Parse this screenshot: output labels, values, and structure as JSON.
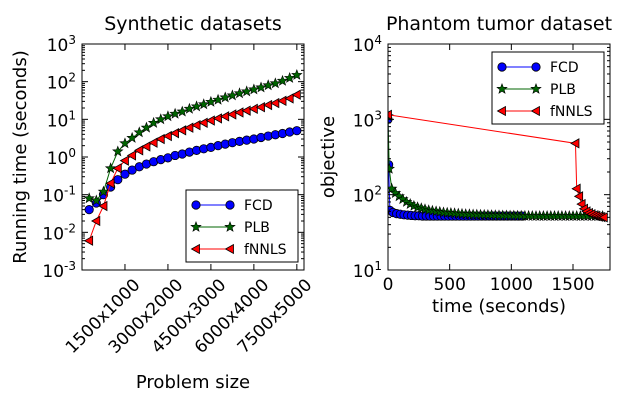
{
  "chart_data": [
    {
      "type": "line",
      "title": "Synthetic datasets",
      "xlabel": "Problem size",
      "ylabel": "Running time (seconds)",
      "yscale": "log",
      "ylim": [
        0.001,
        1000
      ],
      "y_tick_labels": [
        "10-3",
        "10-2",
        "10-1",
        "100",
        "101",
        "102",
        "103"
      ],
      "x_tick_labels": [
        "1500x1000",
        "3000x2000",
        "4500x3000",
        "6000x4000",
        "7500x5000"
      ],
      "x_ticks": [
        6,
        12,
        18,
        24,
        30
      ],
      "xlim": [
        0,
        31
      ],
      "legend_position": "lower-right",
      "x": [
        1,
        2,
        3,
        4,
        5,
        6,
        7,
        8,
        9,
        10,
        11,
        12,
        13,
        14,
        15,
        16,
        17,
        18,
        19,
        20,
        21,
        22,
        23,
        24,
        25,
        26,
        27,
        28,
        29,
        30
      ],
      "series": [
        {
          "name": "FCD",
          "color": "#0000ff",
          "marker": "circle",
          "values": [
            0.04,
            0.06,
            0.1,
            0.16,
            0.25,
            0.35,
            0.45,
            0.55,
            0.65,
            0.75,
            0.85,
            0.95,
            1.1,
            1.2,
            1.35,
            1.5,
            1.65,
            1.8,
            2.0,
            2.2,
            2.4,
            2.6,
            2.8,
            3.0,
            3.3,
            3.6,
            3.9,
            4.2,
            4.6,
            5.0
          ]
        },
        {
          "name": "PLB",
          "color": "#006400",
          "marker": "star",
          "values": [
            0.08,
            0.07,
            0.12,
            0.5,
            1.4,
            2.3,
            3.2,
            4.5,
            6.0,
            8.0,
            10,
            12,
            14,
            16,
            19,
            22,
            25,
            29,
            33,
            38,
            43,
            49,
            55,
            62,
            70,
            80,
            90,
            105,
            125,
            150
          ]
        },
        {
          "name": "fNNLS",
          "color": "#ff0000",
          "marker": "triangle-left",
          "values": [
            0.006,
            0.02,
            0.05,
            0.2,
            0.5,
            0.8,
            1.1,
            1.5,
            1.9,
            2.4,
            3.0,
            3.6,
            4.3,
            5.1,
            6.0,
            7.0,
            8.1,
            9.3,
            10.6,
            12,
            13.5,
            15.2,
            17,
            19,
            21,
            24,
            27,
            31,
            36,
            45
          ]
        }
      ]
    },
    {
      "type": "line",
      "title": "Phantom tumor dataset",
      "xlabel": "time (seconds)",
      "ylabel": "objective",
      "yscale": "log",
      "ylim": [
        10,
        10000
      ],
      "xlim": [
        0,
        1800
      ],
      "y_tick_labels": [
        "101",
        "102",
        "103",
        "104"
      ],
      "x_tick_labels": [
        "0",
        "500",
        "1000",
        "1500"
      ],
      "x_ticks": [
        0,
        500,
        1000,
        1500
      ],
      "legend_position": "top-right",
      "series": [
        {
          "name": "FCD",
          "color": "#0000ff",
          "marker": "circle",
          "points": [
            [
              0,
              1000
            ],
            [
              5,
              250
            ],
            [
              15,
              62
            ],
            [
              40,
              58
            ],
            [
              70,
              56
            ],
            [
              100,
              55
            ],
            [
              130,
              54
            ],
            [
              160,
              53.5
            ],
            [
              190,
              53
            ],
            [
              220,
              52.5
            ],
            [
              250,
              52.5
            ],
            [
              280,
              52
            ],
            [
              310,
              52
            ],
            [
              340,
              52
            ],
            [
              370,
              52
            ],
            [
              400,
              52
            ],
            [
              430,
              52
            ],
            [
              460,
              52
            ],
            [
              490,
              52
            ],
            [
              520,
              52
            ],
            [
              550,
              52
            ],
            [
              580,
              52
            ],
            [
              610,
              52
            ],
            [
              640,
              52
            ],
            [
              670,
              52
            ],
            [
              700,
              52
            ],
            [
              730,
              52
            ],
            [
              760,
              52
            ],
            [
              790,
              52
            ],
            [
              820,
              52
            ],
            [
              850,
              52
            ],
            [
              880,
              52
            ],
            [
              910,
              52
            ],
            [
              940,
              52
            ],
            [
              970,
              52
            ],
            [
              1000,
              52
            ],
            [
              1030,
              52
            ],
            [
              1060,
              52
            ],
            [
              1090,
              52
            ]
          ],
          "markers_every": 1
        },
        {
          "name": "PLB",
          "color": "#006400",
          "marker": "star",
          "points": [
            [
              0,
              1100
            ],
            [
              10,
              220
            ],
            [
              30,
              120
            ],
            [
              60,
              105
            ],
            [
              90,
              95
            ],
            [
              120,
              87
            ],
            [
              150,
              80
            ],
            [
              180,
              75
            ],
            [
              210,
              71
            ],
            [
              240,
              68
            ],
            [
              270,
              66
            ],
            [
              300,
              64
            ],
            [
              330,
              62
            ],
            [
              360,
              61
            ],
            [
              390,
              60
            ],
            [
              420,
              59
            ],
            [
              450,
              58
            ],
            [
              480,
              57.5
            ],
            [
              510,
              57
            ],
            [
              540,
              56.5
            ],
            [
              570,
              56
            ],
            [
              600,
              55.5
            ],
            [
              630,
              55
            ],
            [
              660,
              54.8
            ],
            [
              690,
              54.5
            ],
            [
              720,
              54.2
            ],
            [
              750,
              54
            ],
            [
              780,
              53.8
            ],
            [
              810,
              53.6
            ],
            [
              840,
              53.4
            ],
            [
              870,
              53.2
            ],
            [
              900,
              53
            ],
            [
              930,
              52.9
            ],
            [
              960,
              52.8
            ],
            [
              990,
              52.7
            ],
            [
              1020,
              52.6
            ],
            [
              1050,
              52.5
            ],
            [
              1080,
              52.4
            ],
            [
              1110,
              52.3
            ],
            [
              1140,
              52.2
            ],
            [
              1170,
              52.1
            ],
            [
              1200,
              52
            ],
            [
              1230,
              52
            ],
            [
              1260,
              52
            ],
            [
              1290,
              52
            ],
            [
              1320,
              52
            ],
            [
              1350,
              52
            ],
            [
              1380,
              52
            ],
            [
              1410,
              52
            ],
            [
              1440,
              52
            ],
            [
              1470,
              52
            ],
            [
              1500,
              52
            ],
            [
              1530,
              52
            ],
            [
              1560,
              52
            ],
            [
              1590,
              52
            ],
            [
              1620,
              52
            ],
            [
              1650,
              52
            ],
            [
              1680,
              52
            ],
            [
              1710,
              52
            ],
            [
              1740,
              52
            ]
          ],
          "markers_every": 1
        },
        {
          "name": "fNNLS",
          "color": "#ff0000",
          "marker": "triangle-left",
          "points": [
            [
              0,
              1150
            ],
            [
              1520,
              480
            ],
            [
              1530,
              120
            ],
            [
              1550,
              95
            ],
            [
              1570,
              75
            ],
            [
              1590,
              65
            ],
            [
              1610,
              60
            ],
            [
              1630,
              57
            ],
            [
              1650,
              55
            ],
            [
              1670,
              53
            ],
            [
              1690,
              52
            ],
            [
              1710,
              51
            ],
            [
              1730,
              50.5
            ],
            [
              1750,
              50
            ]
          ],
          "markers_every": 1
        }
      ]
    }
  ]
}
